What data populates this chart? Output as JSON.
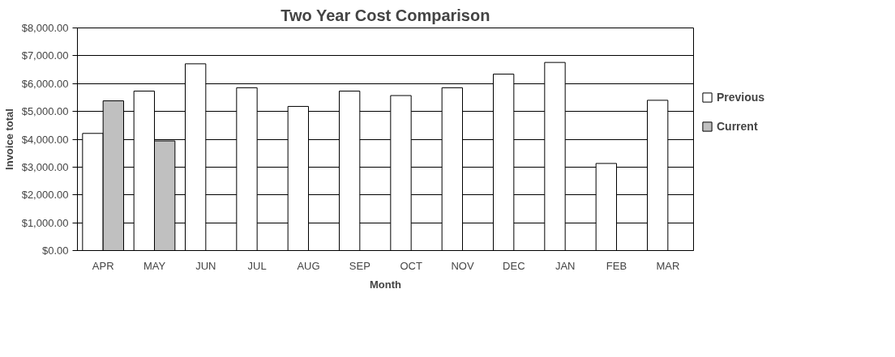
{
  "chart_data": {
    "type": "bar",
    "title": "Two Year Cost Comparison",
    "xlabel": "Month",
    "ylabel": "Invoice total",
    "categories": [
      "APR",
      "MAY",
      "JUN",
      "JUL",
      "AUG",
      "SEP",
      "OCT",
      "NOV",
      "DEC",
      "JAN",
      "FEB",
      "MAR"
    ],
    "series": [
      {
        "name": "Previous",
        "color": "#ffffff",
        "values": [
          4210,
          5730,
          6710,
          5850,
          5180,
          5730,
          5570,
          5850,
          6340,
          6760,
          3130,
          5400
        ]
      },
      {
        "name": "Current",
        "color": "#c0c0c0",
        "values": [
          5380,
          3940,
          null,
          null,
          null,
          null,
          null,
          null,
          null,
          null,
          null,
          null
        ]
      }
    ],
    "ylim": [
      0,
      8000
    ],
    "yticks": [
      {
        "value": 0,
        "label": "$0.00"
      },
      {
        "value": 1000,
        "label": "$1,000.00"
      },
      {
        "value": 2000,
        "label": "$2,000.00"
      },
      {
        "value": 3000,
        "label": "$3,000.00"
      },
      {
        "value": 4000,
        "label": "$4,000.00"
      },
      {
        "value": 5000,
        "label": "$5,000.00"
      },
      {
        "value": 6000,
        "label": "$6,000.00"
      },
      {
        "value": 7000,
        "label": "$7,000.00"
      },
      {
        "value": 8000,
        "label": "$8,000.00"
      }
    ],
    "grid": "y",
    "legend": "right"
  }
}
